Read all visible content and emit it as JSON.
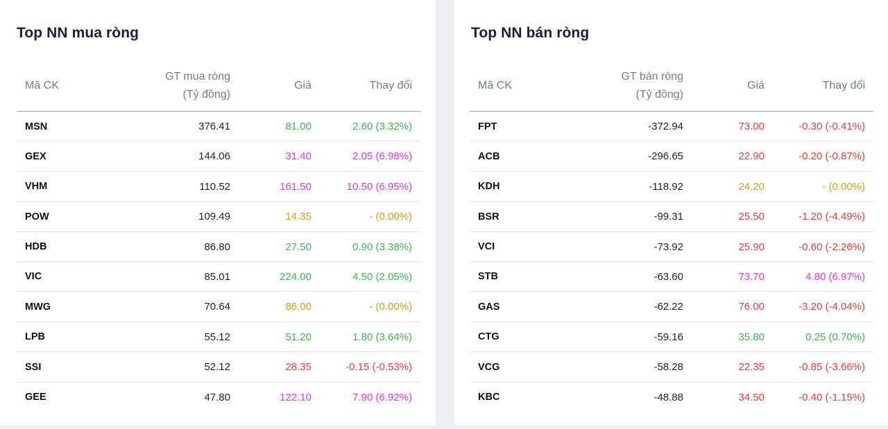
{
  "buy": {
    "title": "Top NN mua ròng",
    "headers": {
      "code": "Mã CK",
      "value_line1": "GT mua ròng",
      "value_line2": "(Tỷ đồng)",
      "price": "Giá",
      "change": "Thay đổi"
    },
    "rows": [
      {
        "code": "MSN",
        "value": "376.41",
        "price": "81.00",
        "change": "2.60 (3.32%)",
        "color": "green"
      },
      {
        "code": "GEX",
        "value": "144.06",
        "price": "31.40",
        "change": "2.05 (6.98%)",
        "color": "purple"
      },
      {
        "code": "VHM",
        "value": "110.52",
        "price": "161.50",
        "change": "10.50 (6.95%)",
        "color": "purple"
      },
      {
        "code": "POW",
        "value": "109.49",
        "price": "14.35",
        "change": "- (0.00%)",
        "color": "yellow"
      },
      {
        "code": "HDB",
        "value": "86.80",
        "price": "27.50",
        "change": "0.90 (3.38%)",
        "color": "green"
      },
      {
        "code": "VIC",
        "value": "85.01",
        "price": "224.00",
        "change": "4.50 (2.05%)",
        "color": "green"
      },
      {
        "code": "MWG",
        "value": "70.64",
        "price": "86.00",
        "change": "- (0.00%)",
        "color": "yellow"
      },
      {
        "code": "LPB",
        "value": "55.12",
        "price": "51.20",
        "change": "1.80 (3.64%)",
        "color": "green"
      },
      {
        "code": "SSI",
        "value": "52.12",
        "price": "28.35",
        "change": "-0.15 (-0.53%)",
        "color": "red"
      },
      {
        "code": "GEE",
        "value": "47.80",
        "price": "122.10",
        "change": "7.90 (6.92%)",
        "color": "purple"
      }
    ]
  },
  "sell": {
    "title": "Top NN bán ròng",
    "headers": {
      "code": "Mã CK",
      "value_line1": "GT bán ròng",
      "value_line2": "(Tỷ đồng)",
      "price": "Giá",
      "change": "Thay đổi"
    },
    "rows": [
      {
        "code": "FPT",
        "value": "-372.94",
        "price": "73.00",
        "change": "-0.30 (-0.41%)",
        "color": "red"
      },
      {
        "code": "ACB",
        "value": "-296.65",
        "price": "22.90",
        "change": "-0.20 (-0.87%)",
        "color": "red"
      },
      {
        "code": "KDH",
        "value": "-118.92",
        "price": "24.20",
        "change": "- (0.00%)",
        "color": "yellow"
      },
      {
        "code": "BSR",
        "value": "-99.31",
        "price": "25.50",
        "change": "-1.20 (-4.49%)",
        "color": "red"
      },
      {
        "code": "VCI",
        "value": "-73.92",
        "price": "25.90",
        "change": "-0.60 (-2.26%)",
        "color": "red"
      },
      {
        "code": "STB",
        "value": "-63.60",
        "price": "73.70",
        "change": "4.80 (6.97%)",
        "color": "purple"
      },
      {
        "code": "GAS",
        "value": "-62.22",
        "price": "76.00",
        "change": "-3.20 (-4.04%)",
        "color": "red"
      },
      {
        "code": "CTG",
        "value": "-59.16",
        "price": "35.80",
        "change": "0.25 (0.70%)",
        "color": "green"
      },
      {
        "code": "VCG",
        "value": "-58.28",
        "price": "22.35",
        "change": "-0.85 (-3.66%)",
        "color": "red"
      },
      {
        "code": "KBC",
        "value": "-48.88",
        "price": "34.50",
        "change": "-0.40 (-1.15%)",
        "color": "red"
      }
    ]
  },
  "colors": {
    "green": "#3fb650",
    "red": "#ee3b3b",
    "yellow": "#c9a31a",
    "purple": "#e236e8"
  }
}
